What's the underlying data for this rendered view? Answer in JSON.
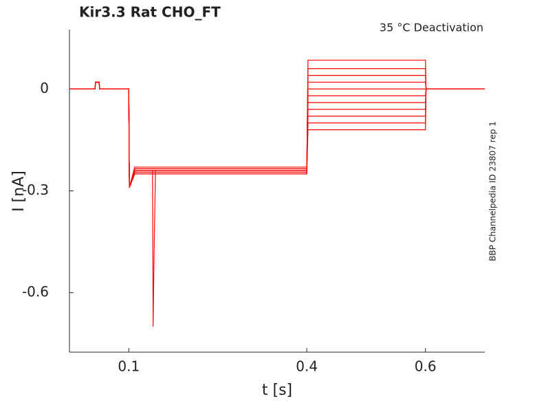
{
  "chart_data": {
    "type": "line",
    "title": "Kir3.3  Rat  CHO_FT",
    "annotation": "35 °C  Deactivation",
    "side_note": "BBP Channelpedia ID 23807 rep 1",
    "x_label": "t [s]",
    "y_label": "I [nA]",
    "xlim": [
      0,
      0.7
    ],
    "ylim": [
      -0.775,
      0.175
    ],
    "xticks": [
      0.1,
      0.4,
      0.6
    ],
    "yticks": [
      -0.6,
      -0.3,
      0
    ],
    "x": [
      0.001,
      0.043,
      0.044,
      0.05,
      0.051,
      0.099,
      0.1,
      0.101,
      0.11,
      0.14,
      0.141,
      0.143,
      0.145,
      0.2,
      0.399,
      0.4,
      0.402,
      0.45,
      0.599,
      0.6,
      0.601,
      0.7
    ],
    "series": [
      {
        "color": "#ff0000",
        "values": [
          0,
          0,
          0.02,
          0.02,
          0,
          0,
          0,
          -0.29,
          -0.24,
          -0.24,
          -0.7,
          -0.44,
          -0.24,
          -0.24,
          -0.24,
          -0.24,
          0.085,
          0.085,
          0.085,
          0.085,
          0,
          0
        ]
      },
      {
        "color": "#ff0000",
        "values": [
          0,
          0,
          0.02,
          0.02,
          0,
          0,
          0,
          -0.29,
          -0.235,
          -0.235,
          -0.235,
          -0.235,
          -0.235,
          -0.235,
          -0.235,
          -0.235,
          0.06,
          0.06,
          0.06,
          0.06,
          0,
          0
        ]
      },
      {
        "color": "#ff0000",
        "values": [
          0,
          0,
          0.02,
          0.02,
          0,
          0,
          0,
          -0.29,
          -0.245,
          -0.245,
          -0.245,
          -0.245,
          -0.245,
          -0.245,
          -0.245,
          -0.245,
          0.04,
          0.04,
          0.04,
          0.04,
          0,
          0
        ]
      },
      {
        "color": "#ff0000",
        "values": [
          0,
          0,
          0.02,
          0.02,
          0,
          0,
          0,
          -0.29,
          -0.24,
          -0.24,
          -0.24,
          -0.24,
          -0.24,
          -0.24,
          -0.24,
          -0.24,
          0.02,
          0.02,
          0.02,
          0.02,
          0,
          0
        ]
      },
      {
        "color": "#ff0000",
        "values": [
          0,
          0,
          0.02,
          0.02,
          0,
          0,
          0,
          -0.29,
          -0.25,
          -0.25,
          -0.25,
          -0.25,
          -0.25,
          -0.25,
          -0.25,
          -0.25,
          0,
          0,
          0,
          0,
          0,
          0
        ]
      },
      {
        "color": "#ff0000",
        "values": [
          0,
          0,
          0.02,
          0.02,
          0,
          0,
          0,
          -0.29,
          -0.23,
          -0.23,
          -0.23,
          -0.23,
          -0.23,
          -0.23,
          -0.23,
          -0.23,
          -0.02,
          -0.02,
          -0.02,
          -0.02,
          0,
          0
        ]
      },
      {
        "color": "#ff0000",
        "values": [
          0,
          0,
          0.02,
          0.02,
          0,
          0,
          0,
          -0.29,
          -0.24,
          -0.24,
          -0.24,
          -0.24,
          -0.24,
          -0.24,
          -0.24,
          -0.24,
          -0.04,
          -0.04,
          -0.04,
          -0.04,
          0,
          0
        ]
      },
      {
        "color": "#ff0000",
        "values": [
          0,
          0,
          0.02,
          0.02,
          0,
          0,
          0,
          -0.29,
          -0.245,
          -0.245,
          -0.245,
          -0.245,
          -0.245,
          -0.245,
          -0.245,
          -0.245,
          -0.06,
          -0.06,
          -0.06,
          -0.06,
          0,
          0
        ]
      },
      {
        "color": "#ff0000",
        "values": [
          0,
          0,
          0.02,
          0.02,
          0,
          0,
          0,
          -0.29,
          -0.235,
          -0.235,
          -0.235,
          -0.235,
          -0.235,
          -0.235,
          -0.235,
          -0.235,
          -0.08,
          -0.08,
          -0.08,
          -0.08,
          0,
          0
        ]
      },
      {
        "color": "#ff0000",
        "values": [
          0,
          0,
          0.02,
          0.02,
          0,
          0,
          0,
          -0.29,
          -0.24,
          -0.24,
          -0.24,
          -0.24,
          -0.24,
          -0.24,
          -0.24,
          -0.24,
          -0.1,
          -0.1,
          -0.1,
          -0.1,
          0,
          0
        ]
      },
      {
        "color": "#ff0000",
        "values": [
          0,
          0,
          0.02,
          0.02,
          0,
          0,
          0,
          -0.29,
          -0.25,
          -0.25,
          -0.25,
          -0.25,
          -0.25,
          -0.25,
          -0.25,
          -0.25,
          -0.12,
          -0.12,
          -0.12,
          -0.12,
          0,
          0
        ]
      }
    ]
  }
}
